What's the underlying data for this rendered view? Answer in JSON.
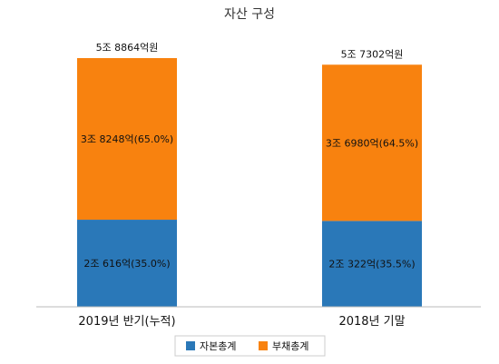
{
  "chart_data": {
    "type": "bar",
    "stacked": true,
    "title": "자산 구성",
    "categories": [
      "2019년 반기(누적)",
      "2018년 기말"
    ],
    "totals": [
      58864,
      57302
    ],
    "total_labels": [
      "5조 8864억원",
      "5조 7302억원"
    ],
    "series": [
      {
        "name": "자본총계",
        "color": "#2a78b8",
        "values": [
          20616,
          20322
        ],
        "labels": [
          "2조 616억(35.0%)",
          "2조 322억(35.5%)"
        ]
      },
      {
        "name": "부채총계",
        "color": "#f8820f",
        "values": [
          38248,
          36980
        ],
        "labels": [
          "3조 8248억(65.0%)",
          "3조 6980억(64.5%)"
        ]
      }
    ],
    "ylim": [
      0,
      58864
    ],
    "legend_position": "bottom",
    "grid": false
  }
}
